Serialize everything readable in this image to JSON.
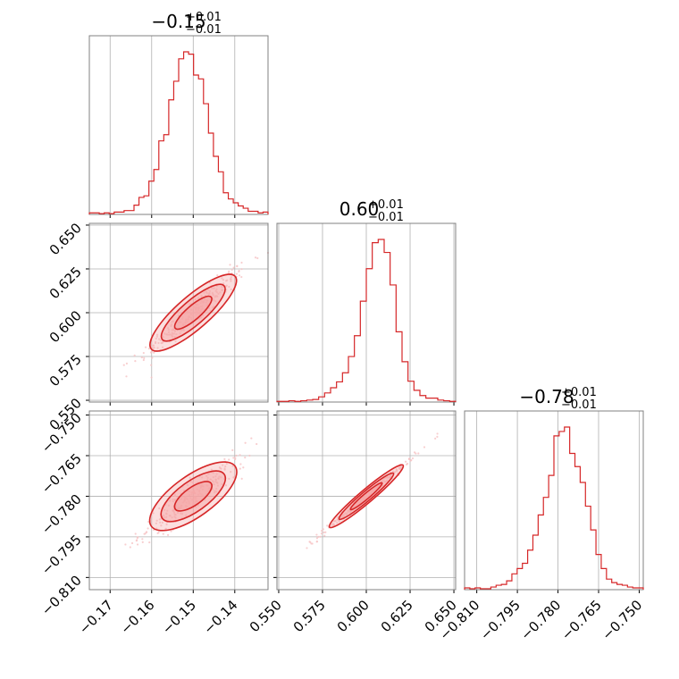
{
  "figure": {
    "titles": {
      "p0": {
        "main": "−0.15",
        "sup": "+0.01",
        "sub": "−0.01"
      },
      "p1": {
        "main": "0.60",
        "sup": "+0.01",
        "sub": "−0.01"
      },
      "p2": {
        "main": "−0.78",
        "sup": "+0.01",
        "sub": "−0.01"
      }
    },
    "colors": {
      "line": "#d62728",
      "fill": "#f4a3a4",
      "points": "#f6c3c4",
      "grid": "#b0b0b0",
      "frame": "#808080"
    }
  },
  "chart_data": {
    "type": "corner",
    "grid": true,
    "parameters": [
      {
        "median": -0.15,
        "plus": 0.01,
        "minus": 0.01,
        "range": [
          -0.175,
          -0.132
        ],
        "ticks": [
          -0.17,
          -0.16,
          -0.15,
          -0.14
        ],
        "tick_labels": [
          "−0.17",
          "−0.16",
          "−0.15",
          "−0.14"
        ]
      },
      {
        "median": 0.6,
        "plus": 0.01,
        "minus": 0.01,
        "range": [
          0.549,
          0.651
        ],
        "ticks": [
          0.55,
          0.575,
          0.6,
          0.625,
          0.65
        ],
        "tick_labels": [
          "0.550",
          "0.575",
          "0.600",
          "0.625",
          "0.650"
        ]
      },
      {
        "median": -0.78,
        "plus": 0.01,
        "minus": 0.01,
        "range": [
          -0.8145,
          -0.7485
        ],
        "ticks": [
          -0.81,
          -0.795,
          -0.78,
          -0.765,
          -0.75
        ],
        "tick_labels": [
          "−0.810",
          "−0.795",
          "−0.780",
          "−0.765",
          "−0.750"
        ]
      }
    ],
    "histograms": [
      {
        "param": 0,
        "counts": [
          2,
          2,
          1,
          2,
          1,
          3,
          3,
          5,
          5,
          12,
          22,
          24,
          43,
          58,
          95,
          103,
          148,
          172,
          201,
          210,
          207,
          180,
          175,
          143,
          105,
          75,
          55,
          28,
          20,
          15,
          11,
          8,
          4,
          4,
          2,
          3
        ]
      },
      {
        "param": 1,
        "counts": [
          1,
          1,
          2,
          1,
          2,
          3,
          4,
          8,
          14,
          22,
          31,
          45,
          70,
          102,
          155,
          205,
          245,
          250,
          230,
          180,
          108,
          62,
          32,
          18,
          10,
          6,
          6,
          3,
          2,
          1
        ]
      },
      {
        "param": 2,
        "counts": [
          2,
          1,
          2,
          1,
          1,
          3,
          5,
          6,
          10,
          18,
          24,
          30,
          45,
          62,
          85,
          105,
          130,
          175,
          180,
          185,
          155,
          140,
          122,
          95,
          68,
          40,
          24,
          12,
          8,
          6,
          5,
          3,
          2,
          2
        ]
      }
    ],
    "pairs": [
      {
        "x": 0,
        "y": 1,
        "slope": 2.06,
        "sigma_x": 0.0048,
        "rho": 0.96
      },
      {
        "x": 0,
        "y": 2,
        "slope": 1.1,
        "sigma_x": 0.0048,
        "rho": 0.92
      },
      {
        "x": 1,
        "y": 2,
        "slope": 0.545,
        "sigma_x": 0.01,
        "rho": 0.995
      }
    ]
  }
}
